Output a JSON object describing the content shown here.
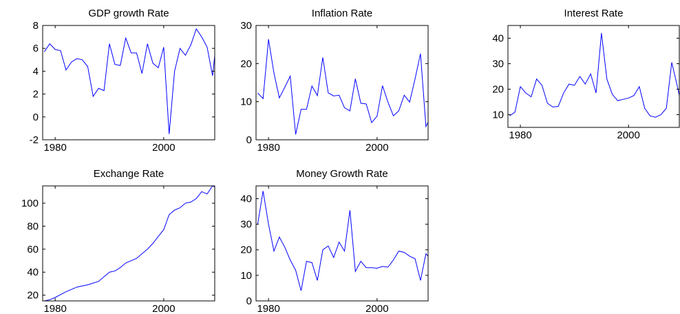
{
  "chart_data": [
    {
      "type": "line",
      "title": "GDP growth Rate",
      "color": "#0000ff",
      "x": [
        1978,
        1979,
        1980,
        1981,
        1982,
        1983,
        1984,
        1985,
        1986,
        1987,
        1988,
        1989,
        1990,
        1991,
        1992,
        1993,
        1994,
        1995,
        1996,
        1997,
        1998,
        1999,
        2000,
        2001,
        2002,
        2003,
        2004,
        2005,
        2006,
        2007,
        2008,
        2009,
        2010
      ],
      "values": [
        5.7,
        6.4,
        5.9,
        5.8,
        4.1,
        4.8,
        5.1,
        5.0,
        4.4,
        1.8,
        2.5,
        2.3,
        6.4,
        4.6,
        4.5,
        6.9,
        5.6,
        5.6,
        3.8,
        6.4,
        4.7,
        4.3,
        6.1,
        -1.5,
        4.0,
        6.0,
        5.4,
        6.3,
        7.7,
        7.0,
        6.1,
        3.6,
        8.0
      ],
      "xlim": [
        1977.7,
        2009.4
      ],
      "ylim": [
        -2,
        8
      ],
      "xticks": [
        1980,
        2000
      ],
      "yticks": [
        -2,
        0,
        2,
        4,
        6,
        8
      ]
    },
    {
      "type": "line",
      "title": "Inflation Rate",
      "color": "#0000ff",
      "x": [
        1978,
        1979,
        1980,
        1981,
        1982,
        1983,
        1984,
        1985,
        1986,
        1987,
        1988,
        1989,
        1990,
        1991,
        1992,
        1993,
        1994,
        1995,
        1996,
        1997,
        1998,
        1999,
        2000,
        2001,
        2002,
        2003,
        2004,
        2005,
        2006,
        2007,
        2008,
        2009,
        2010
      ],
      "values": [
        12.3,
        10.8,
        26.4,
        17.5,
        11,
        13.8,
        16.7,
        1.4,
        8,
        8,
        14.1,
        11.6,
        21.6,
        12.3,
        11.5,
        11.7,
        8.4,
        7.6,
        16,
        9.6,
        9.4,
        4.5,
        6.2,
        14.2,
        9.9,
        6.3,
        7.6,
        11.7,
        9.9,
        16,
        22.6,
        3.5,
        6.3
      ],
      "xlim": [
        1977.7,
        2009.4
      ],
      "ylim": [
        0,
        30
      ],
      "xticks": [
        1980,
        2000
      ],
      "yticks": [
        0,
        10,
        20,
        30
      ]
    },
    {
      "type": "line",
      "title": "Interest Rate",
      "color": "#0000ff",
      "x": [
        1978,
        1979,
        1980,
        1981,
        1982,
        1983,
        1984,
        1985,
        1986,
        1987,
        1988,
        1989,
        1990,
        1991,
        1992,
        1993,
        1994,
        1995,
        1996,
        1997,
        1998,
        1999,
        2000,
        2001,
        2002,
        2003,
        2004,
        2005,
        2006,
        2007,
        2008,
        2009,
        2010
      ],
      "values": [
        9.5,
        11,
        21,
        18.5,
        17,
        24,
        21.5,
        14.5,
        13,
        13.2,
        18.5,
        22,
        21.5,
        25,
        22,
        26,
        18.5,
        42,
        24,
        18,
        15.5,
        16,
        16.5,
        17.5,
        21,
        12.5,
        9.5,
        9,
        10,
        12.5,
        30.5,
        21.5,
        11.5
      ],
      "xlim": [
        1977.7,
        2009.4
      ],
      "ylim": [
        5,
        45
      ],
      "xticks": [
        1980,
        2000
      ],
      "yticks": [
        10,
        20,
        30,
        40
      ]
    },
    {
      "type": "line",
      "title": "Exchange Rate",
      "color": "#0000ff",
      "x": [
        1978,
        1979,
        1980,
        1981,
        1982,
        1983,
        1984,
        1985,
        1986,
        1987,
        1988,
        1989,
        1990,
        1991,
        1992,
        1993,
        1994,
        1995,
        1996,
        1997,
        1998,
        1999,
        2000,
        2001,
        2002,
        2003,
        2004,
        2005,
        2006,
        2007,
        2008,
        2009,
        2010
      ],
      "values": [
        15,
        16,
        18,
        20.5,
        23,
        25,
        27,
        28,
        29,
        30.5,
        32,
        36,
        40,
        41,
        44,
        48,
        50,
        52,
        56,
        60,
        65,
        71,
        77,
        90,
        94,
        96,
        100,
        101,
        104,
        110,
        108,
        115,
        113
      ],
      "xlim": [
        1977.7,
        2009.4
      ],
      "ylim": [
        15,
        115
      ],
      "xticks": [
        1980,
        2000
      ],
      "yticks": [
        20,
        40,
        60,
        80,
        100
      ]
    },
    {
      "type": "line",
      "title": "Money Growth Rate",
      "color": "#0000ff",
      "x": [
        1978,
        1979,
        1980,
        1981,
        1982,
        1983,
        1984,
        1985,
        1986,
        1987,
        1988,
        1989,
        1990,
        1991,
        1992,
        1993,
        1994,
        1995,
        1996,
        1997,
        1998,
        1999,
        2000,
        2001,
        2002,
        2003,
        2004,
        2005,
        2006,
        2007,
        2008,
        2009,
        2010
      ],
      "values": [
        30,
        43,
        30,
        19.5,
        25,
        21,
        16,
        12,
        4,
        15.5,
        15,
        8,
        20,
        21.5,
        17,
        23,
        19.5,
        35.5,
        11.5,
        15.5,
        13,
        13,
        12.8,
        13.5,
        13.2,
        16,
        19.5,
        19,
        17.5,
        16.5,
        8,
        18.5,
        16
      ],
      "xlim": [
        1977.7,
        2009.4
      ],
      "ylim": [
        0,
        45
      ],
      "xticks": [
        1980,
        2000
      ],
      "yticks": [
        0,
        10,
        20,
        30,
        40
      ]
    }
  ]
}
